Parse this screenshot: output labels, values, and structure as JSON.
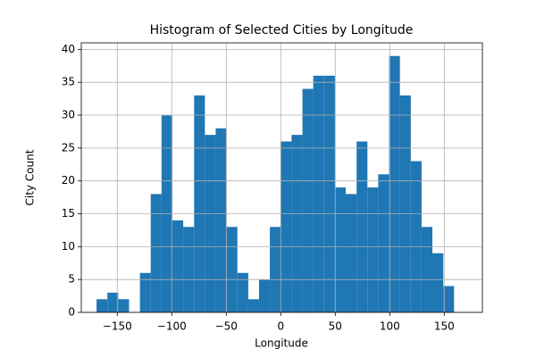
{
  "chart_data": {
    "type": "histogram",
    "title": "Histogram of Selected Cities by Longitude",
    "x_label": "Longitude",
    "y_label": "City Count",
    "bins": [
      -169.0,
      -159.1,
      -149.1,
      -139.2,
      -129.2,
      -119.3,
      -109.4,
      -99.4,
      -89.5,
      -79.5,
      -69.6,
      -59.7,
      -49.7,
      -39.8,
      -29.8,
      -19.9,
      -10.0,
      0.0,
      9.9,
      19.9,
      29.8,
      39.7,
      49.7,
      59.6,
      69.6,
      79.5,
      89.4,
      99.4,
      109.3,
      119.3,
      129.2,
      139.1,
      149.1,
      159.0
    ],
    "counts": [
      2,
      3,
      2,
      0,
      6,
      18,
      30,
      14,
      13,
      33,
      27,
      28,
      13,
      6,
      2,
      5,
      13,
      26,
      27,
      34,
      36,
      36,
      19,
      18,
      26,
      19,
      21,
      39,
      33,
      23,
      13,
      9,
      4
    ],
    "color": "#1f77b4",
    "xlim": [
      -183,
      185
    ],
    "xticks": [
      {
        "value": -150,
        "label": "−150"
      },
      {
        "value": -100,
        "label": "−100"
      },
      {
        "value": -50,
        "label": "−50"
      },
      0,
      50,
      100,
      150
    ],
    "ylim": [
      0,
      41
    ],
    "yticks": [
      0,
      5,
      10,
      15,
      20,
      25,
      30,
      35,
      40
    ],
    "grid": true
  }
}
